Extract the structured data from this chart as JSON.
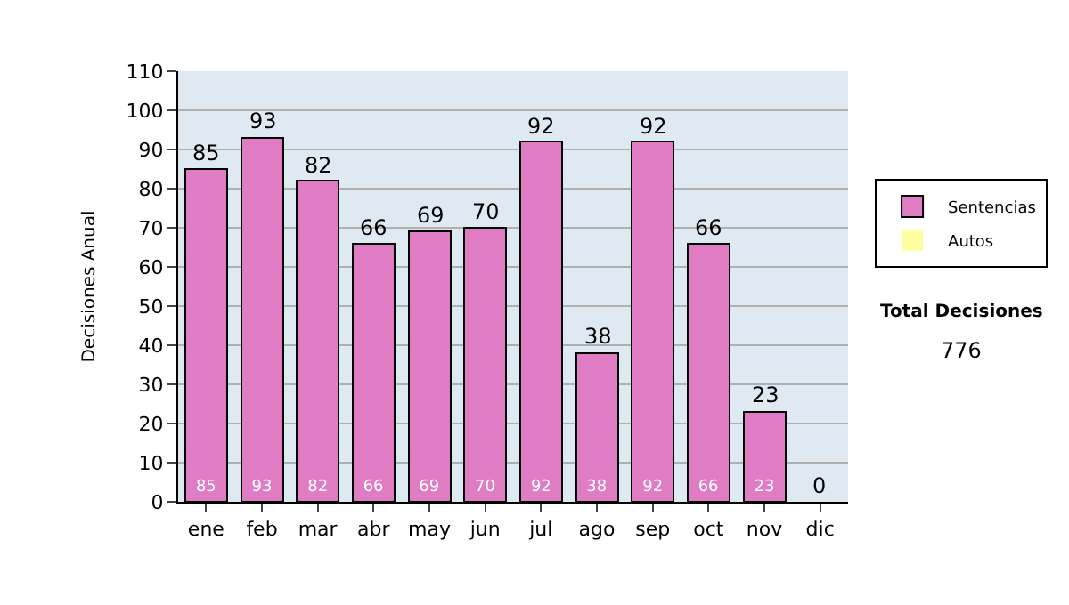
{
  "chart_data": {
    "type": "bar",
    "stacked": true,
    "ylabel": "Decisiones Anual",
    "categories": [
      "ene",
      "feb",
      "mar",
      "abr",
      "may",
      "jun",
      "jul",
      "ago",
      "sep",
      "oct",
      "nov",
      "dic"
    ],
    "series": [
      {
        "name": "Sentencias",
        "color": "#e07cc4",
        "values": [
          85,
          93,
          82,
          66,
          69,
          70,
          92,
          38,
          92,
          66,
          23,
          0
        ],
        "value_labels": [
          "85",
          "93",
          "82",
          "66",
          "69",
          "70",
          "92",
          "38",
          "92",
          "66",
          "23",
          null
        ]
      },
      {
        "name": "Autos",
        "color": "#ffffa0",
        "values": [
          null,
          null,
          null,
          null,
          null,
          null,
          null,
          null,
          null,
          null,
          null,
          null
        ]
      }
    ],
    "totals": [
      "85",
      "93",
      "82",
      "66",
      "69",
      "70",
      "92",
      "38",
      "92",
      "66",
      "23",
      "0"
    ],
    "ylim": [
      0,
      110
    ],
    "yticks": [
      0,
      10,
      20,
      30,
      40,
      50,
      60,
      70,
      80,
      90,
      100,
      110
    ],
    "grid": "y",
    "legend": "right",
    "annotations": [
      "Total Decisiones",
      "776"
    ]
  }
}
